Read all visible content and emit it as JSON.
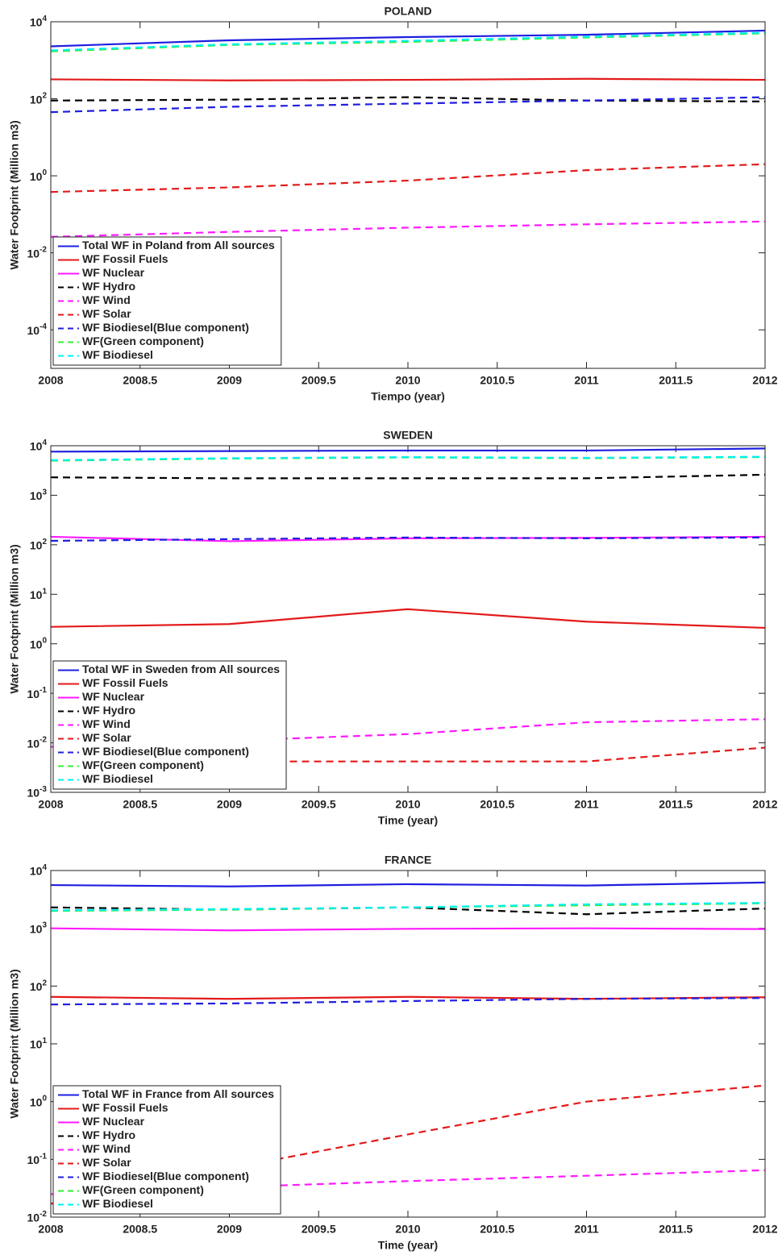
{
  "chart_data": [
    {
      "type": "line",
      "title": "POLAND",
      "x_label": "Tiempo (year)",
      "y_label": "Water Footprint (Million m3)",
      "x": [
        2008,
        2009,
        2010,
        2011,
        2012
      ],
      "xlim": [
        2008,
        2012
      ],
      "xticks": [
        2008,
        2008.5,
        2009,
        2009.5,
        2010,
        2010.5,
        2011,
        2011.5,
        2012
      ],
      "ylim": [
        1e-05,
        10000
      ],
      "log_scale": true,
      "legend": "lower left",
      "yticks": [
        {
          "value": 0.0001,
          "label": "10^-4"
        },
        {
          "value": 0.01,
          "label": "10^-2"
        },
        {
          "value": 1,
          "label": "10^0"
        },
        {
          "value": 100,
          "label": "10^2"
        },
        {
          "value": 10000,
          "label": "10^4"
        }
      ],
      "series": [
        {
          "name": "Total WF in Poland from All sources",
          "color": "#1f1fe0",
          "dashed": false,
          "values": [
            2300,
            3300,
            4000,
            4600,
            5900
          ]
        },
        {
          "name": "WF Fossil Fuels",
          "color": "#e31a1a",
          "dashed": false,
          "values": [
            320,
            300,
            310,
            330,
            310
          ]
        },
        {
          "name": "WF Nuclear",
          "color": "#ff1aff",
          "dashed": false,
          "values": [
            null,
            null,
            null,
            null,
            null
          ]
        },
        {
          "name": "WF Hydro",
          "color": "#000000",
          "dashed": true,
          "values": [
            90,
            95,
            110,
            90,
            85
          ]
        },
        {
          "name": "WF Wind",
          "color": "#ff1aff",
          "dashed": true,
          "values": [
            0.026,
            0.035,
            0.045,
            0.055,
            0.065
          ]
        },
        {
          "name": "WF Solar",
          "color": "#e31a1a",
          "dashed": true,
          "values": [
            0.38,
            0.5,
            0.75,
            1.4,
            2.0
          ]
        },
        {
          "name": "WF Biodiesel(Blue component)",
          "color": "#1f1fe0",
          "dashed": true,
          "values": [
            45,
            62,
            75,
            90,
            110
          ]
        },
        {
          "name": "WF(Green component)",
          "color": "#33ee33",
          "dashed": true,
          "values": [
            1700,
            2500,
            3000,
            3900,
            5000
          ]
        },
        {
          "name": "WF Biodiesel",
          "color": "#00f0f0",
          "dashed": true,
          "values": [
            1800,
            2600,
            3200,
            4100,
            5200
          ]
        }
      ]
    },
    {
      "type": "line",
      "title": "SWEDEN",
      "x_label": "Time (year)",
      "y_label": "Water Footprint (Million m3)",
      "x": [
        2008,
        2009,
        2010,
        2011,
        2012
      ],
      "xlim": [
        2008,
        2012
      ],
      "xticks": [
        2008,
        2008.5,
        2009,
        2009.5,
        2010,
        2010.5,
        2011,
        2011.5,
        2012
      ],
      "ylim": [
        0.001,
        10000
      ],
      "log_scale": true,
      "legend": "lower left",
      "yticks": [
        {
          "value": 0.001,
          "label": "10^-3"
        },
        {
          "value": 0.01,
          "label": "10^-2"
        },
        {
          "value": 0.1,
          "label": "10^-1"
        },
        {
          "value": 1,
          "label": "10^0"
        },
        {
          "value": 10,
          "label": "10^1"
        },
        {
          "value": 100,
          "label": "10^2"
        },
        {
          "value": 1000,
          "label": "10^3"
        },
        {
          "value": 10000,
          "label": "10^4"
        }
      ],
      "series": [
        {
          "name": "Total WF in Sweden from All sources",
          "color": "#1f1fe0",
          "dashed": false,
          "values": [
            7600,
            7800,
            8000,
            8000,
            8800
          ]
        },
        {
          "name": "WF Fossil Fuels",
          "color": "#e31a1a",
          "dashed": false,
          "values": [
            2.2,
            2.5,
            5,
            2.8,
            2.1
          ]
        },
        {
          "name": "WF Nuclear",
          "color": "#ff1aff",
          "dashed": false,
          "values": [
            145,
            118,
            135,
            138,
            145
          ]
        },
        {
          "name": "WF Hydro",
          "color": "#000000",
          "dashed": true,
          "values": [
            2300,
            2200,
            2200,
            2200,
            2600
          ]
        },
        {
          "name": "WF Wind",
          "color": "#ff1aff",
          "dashed": true,
          "values": [
            0.0083,
            0.011,
            0.015,
            0.026,
            0.03
          ]
        },
        {
          "name": "WF Solar",
          "color": "#e31a1a",
          "dashed": true,
          "values": [
            null,
            0.0042,
            0.0042,
            0.0042,
            0.008
          ]
        },
        {
          "name": "WF Biodiesel(Blue component)",
          "color": "#1f1fe0",
          "dashed": true,
          "values": [
            120,
            130,
            140,
            135,
            140
          ]
        },
        {
          "name": "WF(Green component)",
          "color": "#33ee33",
          "dashed": true,
          "values": [
            5000,
            5500,
            5800,
            5600,
            5900
          ]
        },
        {
          "name": "WF Biodiesel",
          "color": "#00f0f0",
          "dashed": true,
          "values": [
            5100,
            5600,
            5900,
            5700,
            6000
          ]
        }
      ]
    },
    {
      "type": "line",
      "title": "FRANCE",
      "x_label": "Time (year)",
      "y_label": "Water Footprint (Million m3)",
      "x": [
        2008,
        2009,
        2010,
        2011,
        2012
      ],
      "xlim": [
        2008,
        2012
      ],
      "xticks": [
        2008,
        2008.5,
        2009,
        2009.5,
        2010,
        2010.5,
        2011,
        2011.5,
        2012
      ],
      "ylim": [
        0.01,
        10000
      ],
      "log_scale": true,
      "legend": "lower left",
      "yticks": [
        {
          "value": 0.01,
          "label": "10^-2"
        },
        {
          "value": 0.1,
          "label": "10^-1"
        },
        {
          "value": 1,
          "label": "10^0"
        },
        {
          "value": 10,
          "label": "10^1"
        },
        {
          "value": 100,
          "label": "10^2"
        },
        {
          "value": 1000,
          "label": "10^3"
        },
        {
          "value": 10000,
          "label": "10^4"
        }
      ],
      "series": [
        {
          "name": "Total WF in France from All sources",
          "color": "#1f1fe0",
          "dashed": false,
          "values": [
            5600,
            5300,
            5800,
            5500,
            6200
          ]
        },
        {
          "name": "WF Fossil Fuels",
          "color": "#e31a1a",
          "dashed": false,
          "values": [
            65,
            60,
            65,
            60,
            64
          ]
        },
        {
          "name": "WF Nuclear",
          "color": "#ff1aff",
          "dashed": false,
          "values": [
            1000,
            920,
            980,
            1000,
            970
          ]
        },
        {
          "name": "WF Hydro",
          "color": "#000000",
          "dashed": true,
          "values": [
            2300,
            2100,
            2300,
            1750,
            2200
          ]
        },
        {
          "name": "WF Wind",
          "color": "#ff1aff",
          "dashed": true,
          "values": [
            0.025,
            0.033,
            0.042,
            0.052,
            0.065
          ]
        },
        {
          "name": "WF Solar",
          "color": "#e31a1a",
          "dashed": true,
          "values": [
            0.017,
            0.07,
            0.27,
            1.0,
            1.9
          ]
        },
        {
          "name": "WF Biodiesel(Blue component)",
          "color": "#1f1fe0",
          "dashed": true,
          "values": [
            48,
            50,
            55,
            60,
            62
          ]
        },
        {
          "name": "WF(Green component)",
          "color": "#33ee33",
          "dashed": true,
          "values": [
            2000,
            2100,
            2300,
            2500,
            2700
          ]
        },
        {
          "name": "WF Biodiesel",
          "color": "#00f0f0",
          "dashed": true,
          "values": [
            2050,
            2150,
            2300,
            2600,
            2750
          ]
        }
      ]
    }
  ]
}
